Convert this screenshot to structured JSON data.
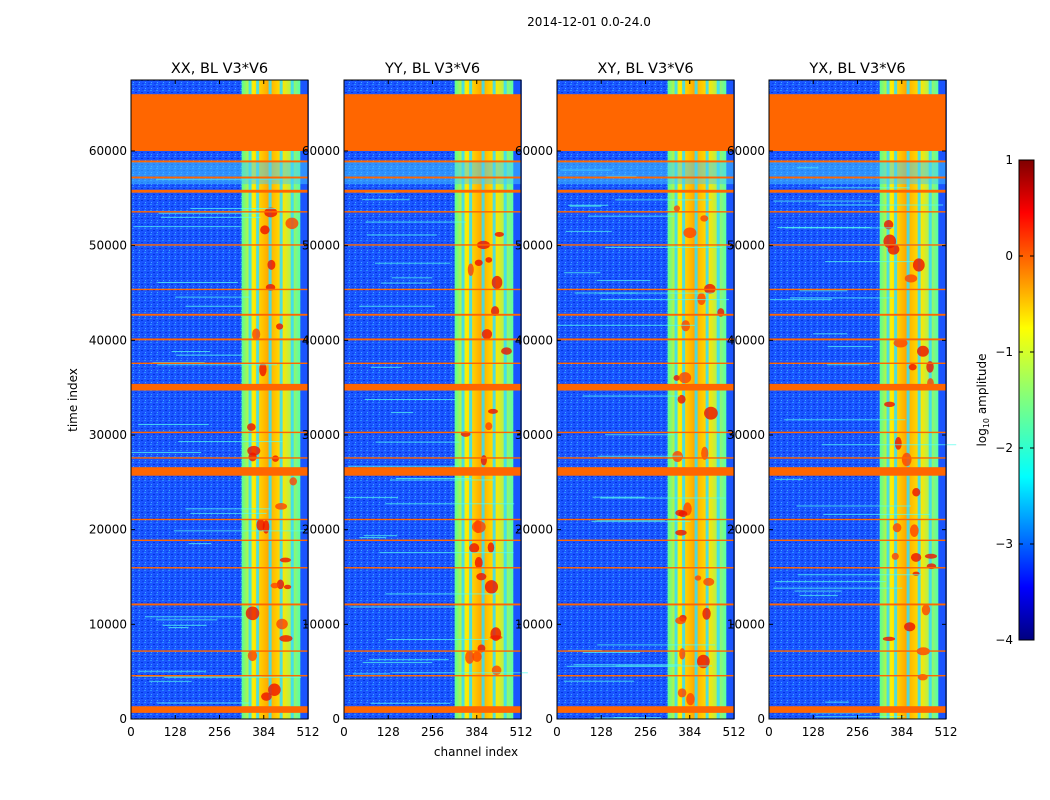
{
  "chart_data": {
    "type": "heatmap",
    "suptitle": "2014-12-01 0.0-24.0",
    "xlabel": "channel index",
    "ylabel": "time index",
    "xlim": [
      0,
      512
    ],
    "ylim": [
      0,
      67500
    ],
    "xticks": [
      "0",
      "128",
      "256",
      "384",
      "512"
    ],
    "yticks": [
      "0",
      "10000",
      "20000",
      "30000",
      "40000",
      "50000",
      "60000"
    ],
    "panels": [
      {
        "title": "XX, BL V3*V6"
      },
      {
        "title": "YY, BL V3*V6"
      },
      {
        "title": "XY, BL V3*V6"
      },
      {
        "title": "YX, BL V3*V6"
      }
    ],
    "flagged_rows": [
      {
        "from": 60000,
        "to": 66000
      },
      {
        "from": 650,
        "to": 1350
      },
      {
        "from": 25700,
        "to": 26600
      },
      {
        "from": 34700,
        "to": 35400
      },
      {
        "from": 55600,
        "to": 55900
      },
      {
        "from": 57100,
        "to": 57300
      },
      {
        "from": 58800,
        "to": 59000
      },
      {
        "from": 42600,
        "to": 42800
      },
      {
        "from": 40000,
        "to": 40200
      },
      {
        "from": 12000,
        "to": 12200
      },
      {
        "from": 18800,
        "to": 18950
      },
      {
        "from": 30200,
        "to": 30350
      },
      {
        "from": 50000,
        "to": 50150
      },
      {
        "from": 4500,
        "to": 4650
      },
      {
        "from": 7100,
        "to": 7250
      },
      {
        "from": 15900,
        "to": 16050
      },
      {
        "from": 21000,
        "to": 21150
      },
      {
        "from": 27500,
        "to": 27650
      },
      {
        "from": 37500,
        "to": 37650
      },
      {
        "from": 45300,
        "to": 45450
      },
      {
        "from": 53500,
        "to": 53650
      }
    ],
    "flag_color": "#ff6600",
    "colorbar": {
      "label": "log10 amplitude",
      "label_main": "log",
      "label_sub": "10",
      "label_tail": " amplitude",
      "range": [
        -4,
        1
      ],
      "ticks": [
        "1",
        "0",
        "−1",
        "−2",
        "−3",
        "−4"
      ],
      "colormap": "jet"
    }
  }
}
